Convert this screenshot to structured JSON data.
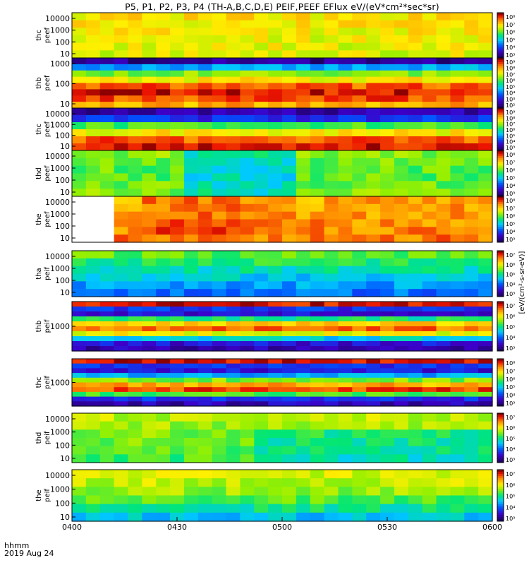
{
  "title": "P5, P1, P2, P3, P4 (TH-A,B,C,D,E) PEIF,PEEF EFlux eV/(eV*cm²*sec*sr)",
  "colorbar_label": "[eV/(cm²-s-sr-eV)]",
  "colorbar_label_short": "(eV/(cm²-s-sr-eV))",
  "footer": {
    "label_line1": "hhmm",
    "label_line2": "2019 Aug 24"
  },
  "chart_data": {
    "type": "heatmap",
    "x_axis": {
      "label": "hhmm",
      "date": "2019 Aug 24",
      "range": [
        "0400",
        "0600"
      ],
      "ticks": [
        "0400",
        "0430",
        "0500",
        "0530",
        "0600"
      ]
    },
    "panels": [
      {
        "name": "thc peef",
        "yticks": [
          "10000",
          "1000",
          "100",
          "10"
        ],
        "cbar_ticks": [
          "10⁸",
          "10⁷",
          "10⁶",
          "10⁵",
          "10⁴",
          "10³"
        ]
      },
      {
        "name": "thb peef",
        "yticks": [
          "1000",
          "100",
          "10"
        ],
        "cbar_ticks": [
          "10⁹",
          "10⁸",
          "10⁷",
          "10⁶",
          "10⁵",
          "10⁴",
          "10³",
          "10²"
        ]
      },
      {
        "name": "thc peef",
        "yticks": [
          "10000",
          "1000",
          "100",
          "10"
        ],
        "cbar_ticks": [
          "10⁹",
          "10⁸",
          "10⁷",
          "10⁶",
          "10⁵",
          "10⁴",
          "10³"
        ]
      },
      {
        "name": "thd peef",
        "yticks": [
          "10000",
          "1000",
          "100",
          "10"
        ],
        "cbar_ticks": [
          "10⁸",
          "10⁷",
          "10⁶",
          "10⁵",
          "10⁴",
          "10³"
        ]
      },
      {
        "name": "the peef",
        "yticks": [
          "10000",
          "1000",
          "100",
          "10"
        ],
        "cbar_ticks": [
          "10⁸",
          "10⁷",
          "10⁶",
          "10⁵",
          "10⁴",
          "10³"
        ]
      },
      {
        "name": "tha peif",
        "yticks": [
          "10000",
          "1000",
          "100",
          "10"
        ],
        "cbar_ticks": [
          "10⁷",
          "10⁶",
          "10⁵",
          "10⁴",
          "10³"
        ]
      },
      {
        "name": "thb peif",
        "yticks": [
          "1000"
        ],
        "cbar_ticks": [
          "10⁷",
          "10⁶",
          "10⁵",
          "10⁴",
          "10³"
        ]
      },
      {
        "name": "thc peif",
        "yticks": [
          "1000"
        ],
        "cbar_ticks": [
          "10⁸",
          "10⁷",
          "10⁶",
          "10⁵",
          "10⁴",
          "10³"
        ]
      },
      {
        "name": "thd peif",
        "yticks": [
          "10000",
          "1000",
          "100",
          "10"
        ],
        "cbar_ticks": [
          "10⁷",
          "10⁶",
          "10⁵",
          "10⁴",
          "10³"
        ]
      },
      {
        "name": "the peif",
        "yticks": [
          "10000",
          "1000",
          "100",
          "10"
        ],
        "cbar_ticks": [
          "10⁷",
          "10⁶",
          "10⁵",
          "10⁴",
          "10³"
        ]
      }
    ]
  }
}
